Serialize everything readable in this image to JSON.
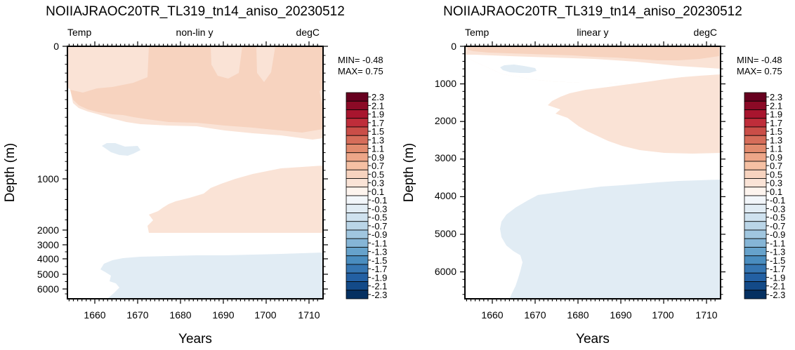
{
  "colorbar_levels": [
    "2.3",
    "2.1",
    "1.9",
    "1.7",
    "1.5",
    "1.3",
    "1.1",
    "0.9",
    "0.7",
    "0.5",
    "0.3",
    "0.1",
    "-0.1",
    "-0.3",
    "-0.5",
    "-0.7",
    "-0.9",
    "-1.1",
    "-1.3",
    "-1.5",
    "-1.7",
    "-1.9",
    "-2.1",
    "-2.3"
  ],
  "colorbar_colors": [
    "#67001f",
    "#8b0a26",
    "#a8152e",
    "#bf2d3a",
    "#ca4e48",
    "#d66d5a",
    "#e28b6e",
    "#eda688",
    "#f5c0a3",
    "#f7d3bf",
    "#fae3d6",
    "#fdf4ee",
    "#f2f6fa",
    "#e1ecf4",
    "#cfe2ef",
    "#bad5e7",
    "#a0c6df",
    "#85b5d6",
    "#66a2cb",
    "#4a8dbf",
    "#3676b2",
    "#2360a3",
    "#134a88",
    "#053061"
  ],
  "chart_data": [
    {
      "type": "contour",
      "title": "NOIIAJRAOC20TR_TL319_tn14_aniso_20230512",
      "subtitle_left": "Temp",
      "subtitle_center": "non-lin y",
      "subtitle_right": "degC",
      "xlabel": "Years",
      "ylabel": "Depth (m)",
      "x_ticks": [
        1660,
        1670,
        1680,
        1690,
        1700,
        1710
      ],
      "xlim": [
        1653,
        1713
      ],
      "y_scale": "nonlinear",
      "y_ticks": [
        0,
        1000,
        2000,
        3000,
        4000,
        5000,
        6000
      ],
      "ylim": [
        0,
        6600
      ],
      "stats": {
        "min": "MIN= -0.48",
        "max": "MAX=  0.75"
      },
      "features": [
        {
          "level_range": [
            0.1,
            0.3
          ],
          "depth_range": [
            0,
            450
          ],
          "years": [
            1653,
            1713
          ]
        },
        {
          "level_range": [
            0.3,
            0.5
          ],
          "depth_range": [
            140,
            340
          ],
          "years": [
            1654,
            1713
          ]
        },
        {
          "level_range": [
            0.1,
            0.3
          ],
          "depth_range": [
            900,
            2100
          ],
          "years": [
            1673,
            1713
          ]
        },
        {
          "level_range": [
            -0.3,
            -0.1
          ],
          "depth_range": [
            520,
            640
          ],
          "years": [
            1661,
            1667
          ]
        },
        {
          "level_range": [
            -0.3,
            -0.1
          ],
          "depth_range": [
            3500,
            6600
          ],
          "years": [
            1661,
            1713
          ]
        }
      ]
    },
    {
      "type": "contour",
      "title": "NOIIAJRAOC20TR_TL319_tn14_aniso_20230512",
      "subtitle_left": "Temp",
      "subtitle_center": "linear y",
      "subtitle_right": "degC",
      "xlabel": "Years",
      "ylabel": "Depth (m)",
      "x_ticks": [
        1660,
        1670,
        1680,
        1690,
        1700,
        1710
      ],
      "xlim": [
        1653,
        1713
      ],
      "y_scale": "linear",
      "y_ticks": [
        0,
        1000,
        2000,
        3000,
        4000,
        5000,
        6000
      ],
      "ylim": [
        0,
        6800
      ],
      "stats": {
        "min": "MIN= -0.48",
        "max": "MAX=  0.75"
      },
      "features": [
        {
          "level_range": [
            0.1,
            0.3
          ],
          "depth_range": [
            0,
            2900
          ],
          "years": [
            1653,
            1713
          ]
        },
        {
          "level_range": [
            0.3,
            0.5
          ],
          "depth_range": [
            20,
            250
          ],
          "years": [
            1654,
            1713
          ]
        },
        {
          "level_range": [
            -0.3,
            -0.1
          ],
          "depth_range": [
            500,
            700
          ],
          "years": [
            1662,
            1667
          ]
        },
        {
          "level_range": [
            -0.3,
            -0.1
          ],
          "depth_range": [
            3500,
            6800
          ],
          "years": [
            1661,
            1713
          ]
        }
      ]
    }
  ]
}
